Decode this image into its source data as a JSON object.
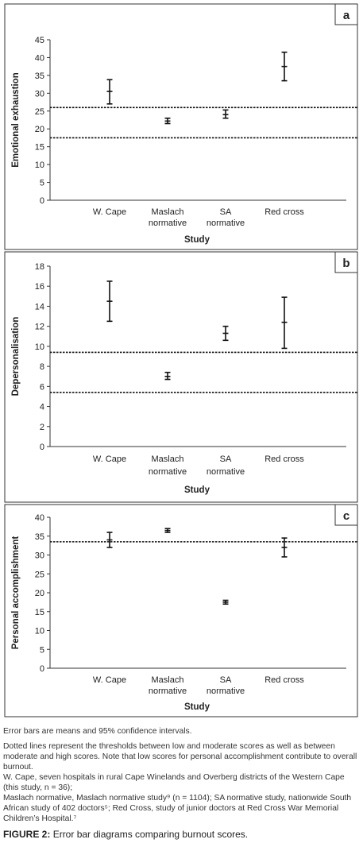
{
  "chart_data": [
    {
      "type": "errorbar",
      "panel_label": "a",
      "ylabel": "Emotional exhaustion",
      "xlabel": "Study",
      "ylim": [
        0,
        45
      ],
      "yticks": [
        0,
        5,
        10,
        15,
        20,
        25,
        30,
        35,
        40,
        45
      ],
      "categories": [
        [
          "W. Cape"
        ],
        [
          "Maslach",
          "normative"
        ],
        [
          "SA",
          "normative"
        ],
        [
          "Red cross"
        ]
      ],
      "points": [
        {
          "mean": 30.5,
          "low": 27.0,
          "high": 33.8
        },
        {
          "mean": 22.2,
          "low": 21.5,
          "high": 23.0
        },
        {
          "mean": 24.0,
          "low": 23.0,
          "high": 25.3
        },
        {
          "mean": 37.5,
          "low": 33.5,
          "high": 41.5
        }
      ],
      "thresholds": [
        26.0,
        17.5
      ]
    },
    {
      "type": "errorbar",
      "panel_label": "b",
      "ylabel": "Depersonalisation",
      "xlabel": "Study",
      "ylim": [
        0,
        18
      ],
      "yticks": [
        0,
        2,
        4,
        6,
        8,
        10,
        12,
        14,
        16,
        18
      ],
      "categories": [
        [
          "W. Cape"
        ],
        [
          "Maslach",
          "normative"
        ],
        [
          "SA",
          "normative"
        ],
        [
          "Red cross"
        ]
      ],
      "points": [
        {
          "mean": 14.5,
          "low": 12.5,
          "high": 16.5
        },
        {
          "mean": 7.0,
          "low": 6.7,
          "high": 7.4
        },
        {
          "mean": 11.3,
          "low": 10.6,
          "high": 12.0
        },
        {
          "mean": 12.4,
          "low": 9.8,
          "high": 14.9
        }
      ],
      "thresholds": [
        9.4,
        5.4
      ]
    },
    {
      "type": "errorbar",
      "panel_label": "c",
      "ylabel": "Personal accomplishment",
      "xlabel": "Study",
      "ylim": [
        0,
        40
      ],
      "yticks": [
        0,
        5,
        10,
        15,
        20,
        25,
        30,
        35,
        40
      ],
      "categories": [
        [
          "W. Cape"
        ],
        [
          "Maslach",
          "normative"
        ],
        [
          "SA",
          "normative"
        ],
        [
          "Red cross"
        ]
      ],
      "points": [
        {
          "mean": 34.0,
          "low": 32.0,
          "high": 36.0
        },
        {
          "mean": 36.5,
          "low": 36.0,
          "high": 37.0
        },
        {
          "mean": 17.5,
          "low": 17.0,
          "high": 18.0
        },
        {
          "mean": 32.0,
          "low": 29.5,
          "high": 34.5
        }
      ],
      "thresholds": [
        33.5
      ]
    }
  ],
  "captions": {
    "note1": "Error bars are means and 95% confidence intervals.",
    "note2": "Dotted lines represent the thresholds between low and moderate scores as well as between moderate and high scores. Note that low scores for personal accomplishment contribute to overall burnout.",
    "note3": "W. Cape, seven hospitals in rural Cape Winelands and Overberg districts of the Western Cape (this study, n = 36);",
    "note4": "Maslach normative, Maslach normative study⁹ (n = 1104); SA normative study, nationwide South African study of 402 doctors⁵; Red Cross, study of junior doctors at Red Cross War Memorial Children’s Hospital.⁷",
    "figure_label": "FIGURE 2:",
    "figure_title": "Error bar diagrams comparing burnout scores."
  }
}
